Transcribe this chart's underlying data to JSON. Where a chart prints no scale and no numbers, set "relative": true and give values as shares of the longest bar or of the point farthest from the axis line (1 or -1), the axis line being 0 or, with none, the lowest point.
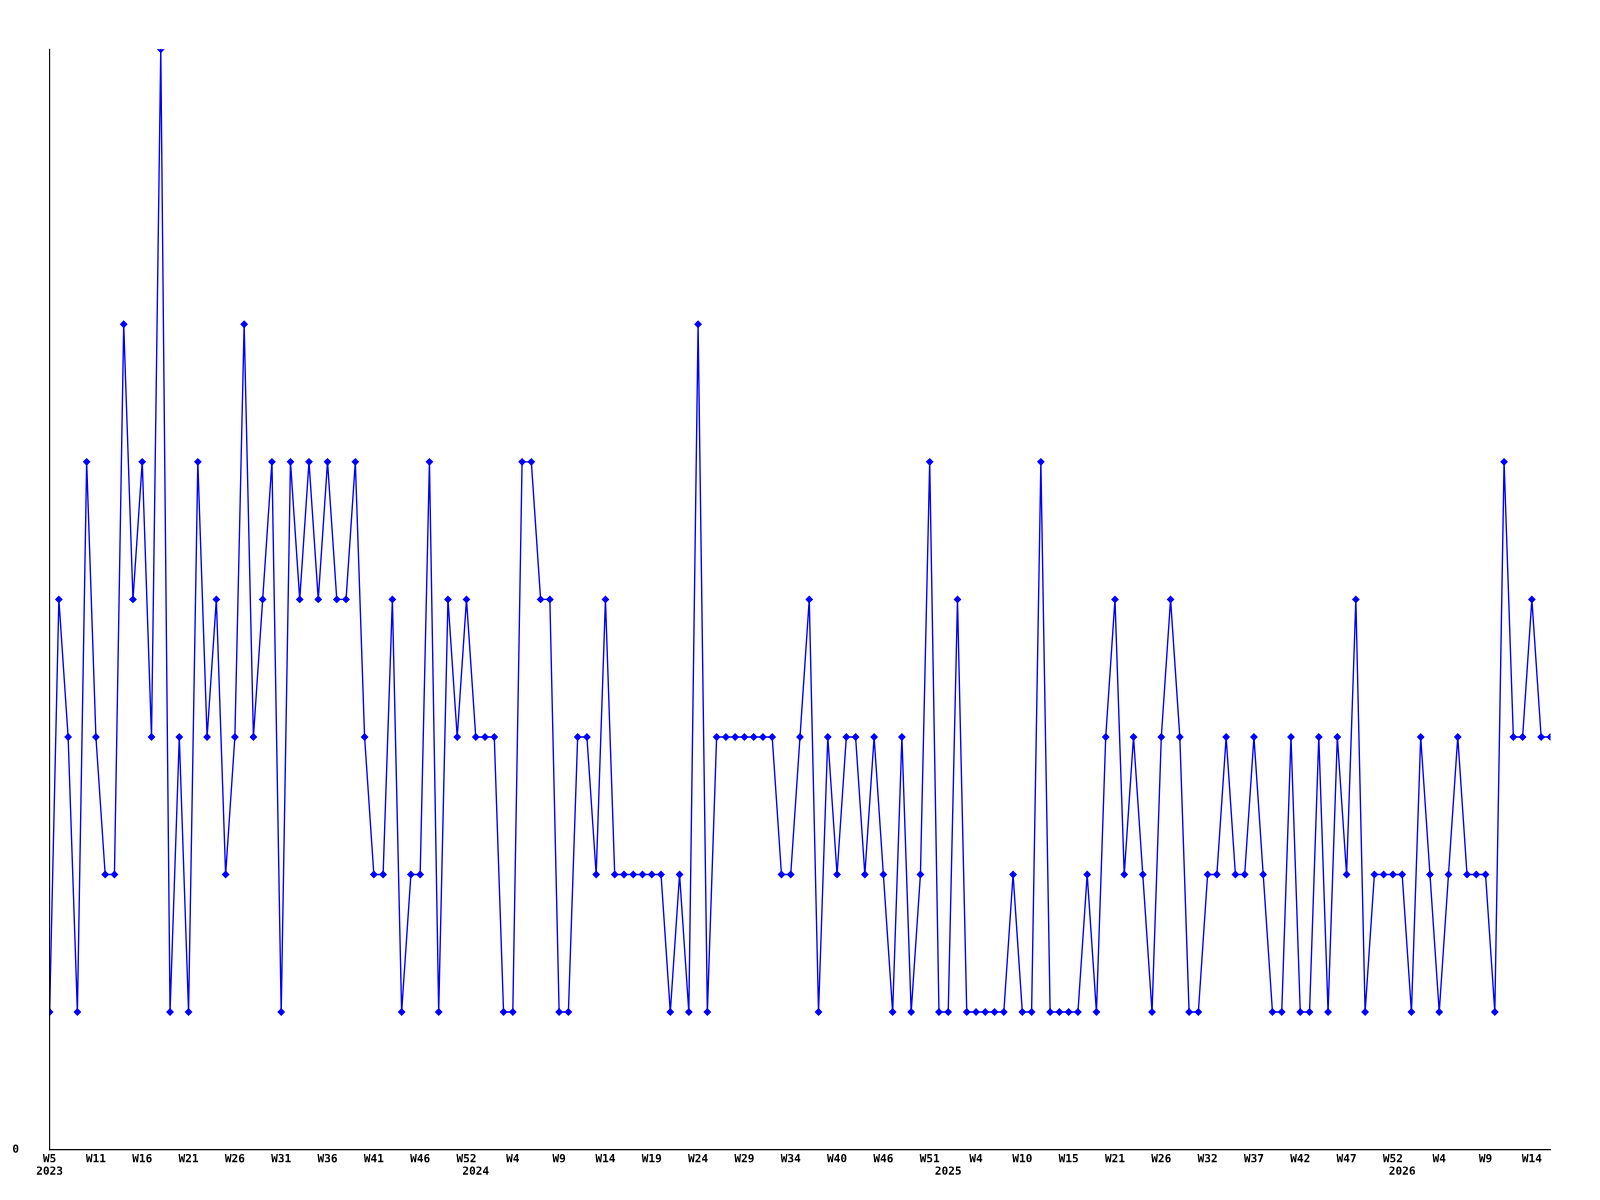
{
  "chart_data": {
    "type": "line",
    "relative": true,
    "marker": "diamond",
    "grid": false,
    "annotations": [
      "0"
    ],
    "categories": [
      "W5\n2023",
      null,
      null,
      null,
      null,
      "W11",
      null,
      null,
      null,
      null,
      "W16",
      null,
      null,
      null,
      null,
      "W21",
      null,
      null,
      null,
      null,
      "W26",
      null,
      null,
      null,
      null,
      "W31",
      null,
      null,
      null,
      null,
      "W36",
      null,
      null,
      null,
      null,
      "W41",
      null,
      null,
      null,
      null,
      "W46",
      null,
      null,
      null,
      null,
      "W52",
      "\n2024",
      null,
      null,
      null,
      "W4",
      null,
      null,
      null,
      null,
      "W9",
      null,
      null,
      null,
      null,
      "W14",
      null,
      null,
      null,
      null,
      "W19",
      null,
      null,
      null,
      null,
      "W24",
      null,
      null,
      null,
      null,
      "W29",
      null,
      null,
      null,
      null,
      "W34",
      null,
      null,
      null,
      null,
      "W40",
      null,
      null,
      null,
      null,
      "W46",
      null,
      null,
      null,
      null,
      "W51",
      null,
      "\n2025",
      null,
      null,
      "W4",
      null,
      null,
      null,
      null,
      "W10",
      null,
      null,
      null,
      null,
      "W15",
      null,
      null,
      null,
      null,
      "W21",
      null,
      null,
      null,
      null,
      "W26",
      null,
      null,
      null,
      null,
      "W32",
      null,
      null,
      null,
      null,
      "W37",
      null,
      null,
      null,
      null,
      "W42",
      null,
      null,
      null,
      null,
      "W47",
      null,
      null,
      null,
      null,
      "W52",
      "\n2026",
      null,
      null,
      null,
      "W4",
      null,
      null,
      null,
      null,
      "W9",
      null,
      null,
      null,
      null,
      "W14",
      null,
      null
    ],
    "series": [
      {
        "color": "#0000ff",
        "values": [
          0.125,
          0.5,
          0.375,
          0.125,
          0.625,
          0.375,
          0.25,
          0.25,
          0.75,
          0.5,
          0.625,
          0.375,
          1,
          0.125,
          0.375,
          0.125,
          0.625,
          0.375,
          0.5,
          0.25,
          0.375,
          0.75,
          0.375,
          0.5,
          0.625,
          0.125,
          0.625,
          0.5,
          0.625,
          0.5,
          0.625,
          0.5,
          0.5,
          0.625,
          0.375,
          0.25,
          0.25,
          0.5,
          0.125,
          0.25,
          0.25,
          0.625,
          0.125,
          0.5,
          0.375,
          0.5,
          0.375,
          0.375,
          0.375,
          0.125,
          0.125,
          0.625,
          0.625,
          0.5,
          0.5,
          0.125,
          0.125,
          0.375,
          0.375,
          0.25,
          0.5,
          0.25,
          0.25,
          0.25,
          0.25,
          0.25,
          0.25,
          0.125,
          0.25,
          0.125,
          0.75,
          0.125,
          0.375,
          0.375,
          0.375,
          0.375,
          0.375,
          0.375,
          0.375,
          0.25,
          0.25,
          0.375,
          0.5,
          0.125,
          0.375,
          0.25,
          0.375,
          0.375,
          0.25,
          0.375,
          0.25,
          0.125,
          0.375,
          0.125,
          0.25,
          0.625,
          0.125,
          0.125,
          0.5,
          0.125,
          0.125,
          0.125,
          0.125,
          0.125,
          0.25,
          0.125,
          0.125,
          0.625,
          0.125,
          0.125,
          0.125,
          0.125,
          0.25,
          0.125,
          0.375,
          0.5,
          0.25,
          0.375,
          0.25,
          0.125,
          0.375,
          0.5,
          0.375,
          0.125,
          0.125,
          0.25,
          0.25,
          0.375,
          0.25,
          0.25,
          0.375,
          0.25,
          0.125,
          0.125,
          0.375,
          0.125,
          0.125,
          0.375,
          0.125,
          0.375,
          0.25,
          0.5,
          0.125,
          0.25,
          0.25,
          0.25,
          0.25,
          0.125,
          0.375,
          0.25,
          0.125,
          0.25,
          0.375,
          0.25,
          0.25,
          0.25,
          0.125,
          0.625,
          0.375,
          0.375,
          0.5,
          0.375,
          0.375
        ]
      }
    ]
  }
}
